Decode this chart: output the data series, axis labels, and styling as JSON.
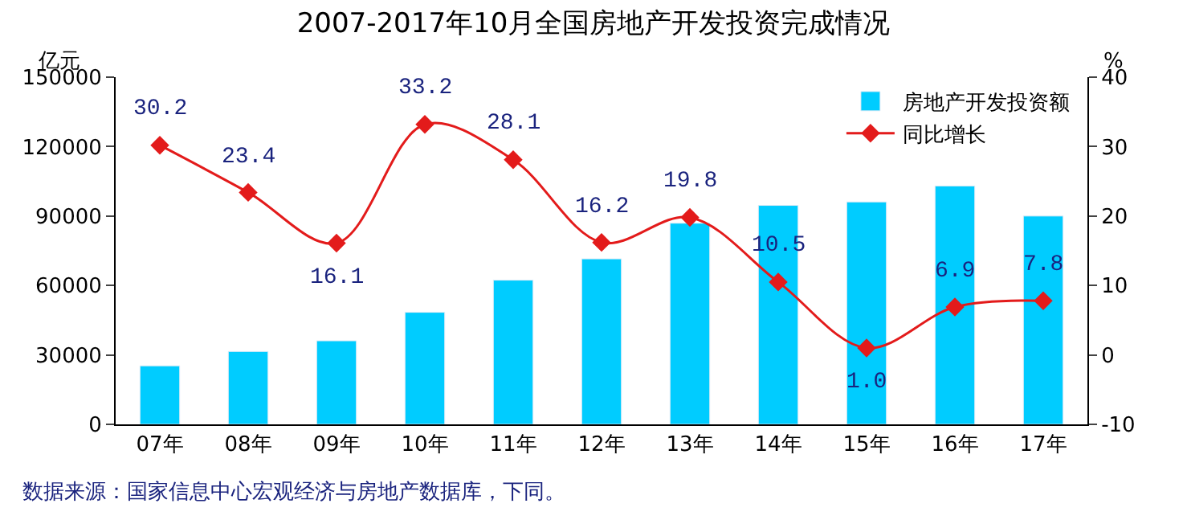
{
  "chart_data": {
    "type": "bar",
    "title": "2007-2017年10月全国房地产开发投资完成情况",
    "categories": [
      "07年",
      "08年",
      "09年",
      "10年",
      "11年",
      "12年",
      "13年",
      "14年",
      "15年",
      "16年",
      "17年"
    ],
    "ylabel": "亿元",
    "y2label": "%",
    "series": [
      {
        "name": "房地产开发投资额",
        "color": "#00ccff",
        "values": [
          25300,
          31500,
          36100,
          48400,
          62300,
          71500,
          86900,
          94600,
          96100,
          103000,
          90000
        ]
      },
      {
        "name": "同比增长",
        "type": "line",
        "axis": "y2",
        "color": "#e31b1b",
        "marker": "diamond",
        "values": [
          30.2,
          23.4,
          16.1,
          33.2,
          28.1,
          16.2,
          19.8,
          10.5,
          1.0,
          6.9,
          7.8
        ],
        "value_labels": [
          "30.2",
          "23.4",
          "16.1",
          "33.2",
          "28.1",
          "16.2",
          "19.8",
          "10.5",
          "1.0",
          "6.9",
          "7.8"
        ]
      }
    ],
    "ylim": [
      0,
      150000
    ],
    "yticks": [
      0,
      30000,
      60000,
      90000,
      120000,
      150000
    ],
    "y2lim": [
      -10,
      40
    ],
    "y2ticks": [
      -10,
      0,
      10,
      20,
      30,
      40
    ],
    "legend": "top right",
    "annotations": [
      "数据来源：国家信息中心宏观经济与房地产数据库，下同。"
    ]
  }
}
